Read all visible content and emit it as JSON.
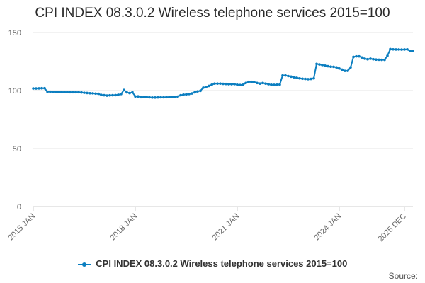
{
  "chart_data": {
    "type": "line",
    "title": "CPI INDEX 08.3.0.2 Wireless telephone services 2015=100",
    "xlabel": "",
    "ylabel": "",
    "ylim": [
      0,
      150
    ],
    "yticks": [
      0,
      50,
      100,
      150
    ],
    "xticks": [
      {
        "label": "2015 JAN",
        "index": 0
      },
      {
        "label": "2018 JAN",
        "index": 36
      },
      {
        "label": "2021 JAN",
        "index": 72
      },
      {
        "label": "2024 JAN",
        "index": 108
      },
      {
        "label": "2025 DEC",
        "index": 131
      }
    ],
    "grid": true,
    "legend_position": "bottom",
    "series": [
      {
        "name": "CPI INDEX 08.3.0.2 Wireless telephone services 2015=100",
        "color": "#0b7ec0",
        "start": "2015 JAN",
        "frequency": "monthly",
        "values": [
          101.8,
          101.8,
          101.9,
          102.0,
          102.0,
          99.0,
          99.0,
          98.9,
          98.8,
          98.8,
          98.7,
          98.7,
          98.7,
          98.6,
          98.6,
          98.6,
          98.6,
          98.4,
          98.1,
          97.9,
          97.7,
          97.6,
          97.4,
          97.2,
          96.2,
          96.0,
          95.7,
          95.9,
          96.0,
          96.1,
          96.4,
          97.0,
          100.5,
          98.5,
          97.8,
          98.5,
          95.0,
          95.0,
          94.3,
          94.5,
          94.5,
          94.2,
          94.0,
          94.0,
          94.1,
          94.2,
          94.2,
          94.3,
          94.4,
          94.5,
          94.6,
          94.8,
          96.0,
          96.5,
          96.7,
          97.0,
          97.5,
          98.5,
          99.3,
          99.8,
          102.5,
          103.0,
          104.0,
          105.0,
          106.0,
          106.0,
          106.0,
          105.8,
          105.7,
          105.5,
          105.5,
          105.6,
          105.0,
          104.8,
          105.0,
          106.5,
          107.5,
          107.5,
          107.2,
          106.5,
          106.0,
          106.5,
          106.0,
          105.5,
          105.0,
          104.9,
          105.0,
          105.2,
          113.0,
          113.0,
          112.5,
          112.0,
          111.5,
          111.0,
          110.5,
          110.2,
          110.0,
          109.8,
          110.0,
          110.5,
          123.0,
          122.5,
          122.0,
          121.5,
          121.0,
          120.6,
          120.5,
          120.0,
          119.0,
          118.0,
          117.0,
          117.0,
          120.0,
          129.0,
          129.5,
          129.5,
          128.5,
          127.5,
          127.0,
          127.5,
          127.0,
          126.7,
          126.6,
          126.5,
          126.5,
          130.0,
          135.7,
          135.5,
          135.4,
          135.4,
          135.3,
          135.4,
          135.5,
          134.0,
          134.2
        ]
      }
    ]
  },
  "legend": {
    "label": "CPI INDEX 08.3.0.2 Wireless telephone services 2015=100"
  },
  "footer": {
    "source": "Source:"
  }
}
